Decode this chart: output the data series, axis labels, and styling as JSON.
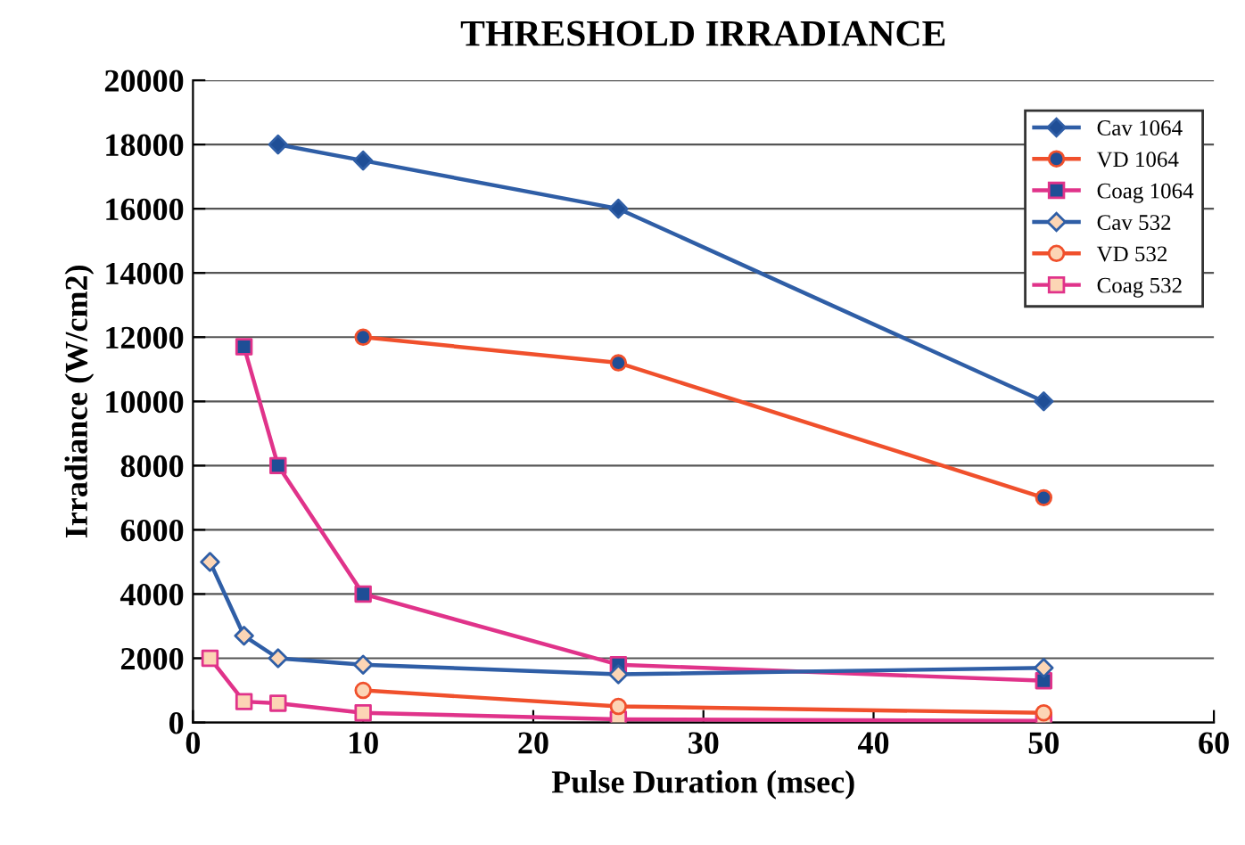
{
  "chart_data": {
    "type": "line",
    "title": "THRESHOLD IRRADIANCE",
    "xlabel": "Pulse Duration (msec)",
    "ylabel": "Irradiance (W/cm2)",
    "xlim": [
      0,
      60
    ],
    "xticks": [
      0,
      10,
      20,
      30,
      40,
      50,
      60
    ],
    "ylim": [
      0,
      20000
    ],
    "yticks": [
      0,
      2000,
      4000,
      6000,
      8000,
      10000,
      12000,
      14000,
      16000,
      18000,
      20000
    ],
    "grid": "y",
    "legend": "top right",
    "line_style": "solid",
    "series": [
      {
        "name": "Cav 1064",
        "color": "#2f5ea6",
        "marker": "diamond",
        "colors": [
          "#1f4e96",
          "#1f4e96",
          "#1f4e96",
          "#1f4e96"
        ],
        "x": [
          5,
          10,
          25,
          50
        ],
        "values": [
          18000,
          17500,
          16000,
          10000
        ]
      },
      {
        "name": "VD 1064",
        "color": "#f0502c",
        "marker": "circle",
        "colors": [
          "#1f4e96",
          "#1f4e96",
          "#1f4e96"
        ],
        "x": [
          10,
          25,
          50
        ],
        "values": [
          12000,
          11200,
          7000
        ]
      },
      {
        "name": "Coag 1064",
        "color": "#e0338a",
        "marker": "square",
        "colors": [
          "#1f4e96",
          "#1f4e96",
          "#1f4e96",
          "#1f4e96",
          "#1f4e96"
        ],
        "x": [
          3,
          5,
          10,
          25,
          50
        ],
        "values": [
          11700,
          8000,
          4000,
          1800,
          1300
        ]
      },
      {
        "name": "Cav 532",
        "color": "#2f5ea6",
        "marker": "diamond",
        "colors": [
          "#fcd5b5",
          "#fcd5b5",
          "#fcd5b5",
          "#fcd5b5",
          "#fcd5b5",
          "#fcd5b5"
        ],
        "x": [
          1,
          3,
          5,
          10,
          25,
          50
        ],
        "values": [
          5000,
          2700,
          2000,
          1800,
          1500,
          1700
        ]
      },
      {
        "name": "VD 532",
        "color": "#f0502c",
        "marker": "circle",
        "colors": [
          "#fcd5b5",
          "#fcd5b5",
          "#fcd5b5"
        ],
        "x": [
          10,
          25,
          50
        ],
        "values": [
          1000,
          500,
          300
        ]
      },
      {
        "name": "Coag 532",
        "color": "#e0338a",
        "marker": "square",
        "colors": [
          "#fcd5b5",
          "#fcd5b5",
          "#fcd5b5",
          "#fcd5b5",
          "#fcd5b5",
          "#fcd5b5"
        ],
        "x": [
          1,
          3,
          5,
          10,
          25,
          50
        ],
        "values": [
          2000,
          650,
          600,
          300,
          100,
          50
        ]
      }
    ]
  }
}
